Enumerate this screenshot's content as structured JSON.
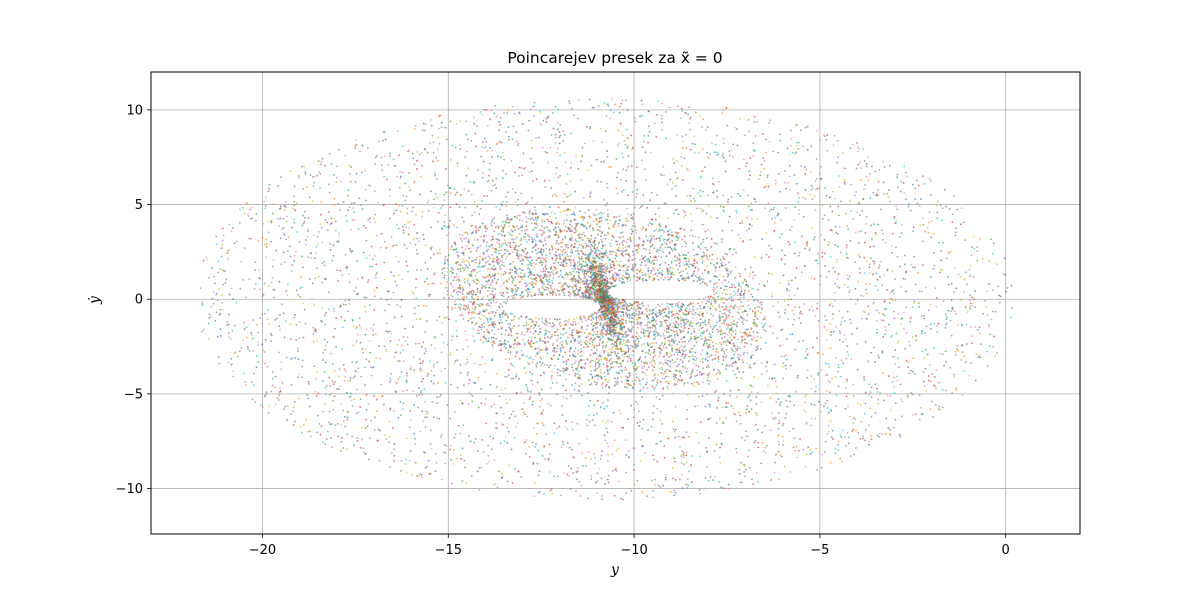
{
  "chart_data": {
    "type": "scatter",
    "title": "Poincarejev presek za x̃ = 0",
    "xlabel": "y",
    "ylabel": "ẏ",
    "xlim": [
      -23.0,
      2.0
    ],
    "ylim": [
      -12.4,
      12.0
    ],
    "xticks": [
      -20,
      -15,
      -10,
      -5,
      0
    ],
    "xtick_labels": [
      "−20",
      "−15",
      "−10",
      "−5",
      "0"
    ],
    "yticks": [
      10,
      5,
      0,
      -5,
      -10
    ],
    "ytick_labels": [
      "10",
      "5",
      "0",
      "−5",
      "−10"
    ],
    "grid": true,
    "legend": "none",
    "point_colors": [
      "#1f77b4",
      "#ff7f0e",
      "#2ca02c",
      "#d62728",
      "#9467bd",
      "#8c564b",
      "#e377c2",
      "#7f7f7f",
      "#bcbd22",
      "#17becf"
    ],
    "series_description": {
      "center": [
        -10.8,
        0.0
      ],
      "outer_extent_x": [
        -21.8,
        1.0
      ],
      "outer_extent_y": [
        -11.4,
        10.7
      ],
      "dense_core_extent_x": [
        -15.0,
        -6.5
      ],
      "dense_core_extent_y": [
        -5.0,
        5.0
      ],
      "holes": [
        {
          "center": [
            -12.2,
            -0.4
          ],
          "half_width": 1.3,
          "half_height": 0.6
        },
        {
          "center": [
            -9.3,
            0.4
          ],
          "half_width": 1.4,
          "half_height": 0.6
        }
      ],
      "approx_point_count": 30000
    }
  }
}
